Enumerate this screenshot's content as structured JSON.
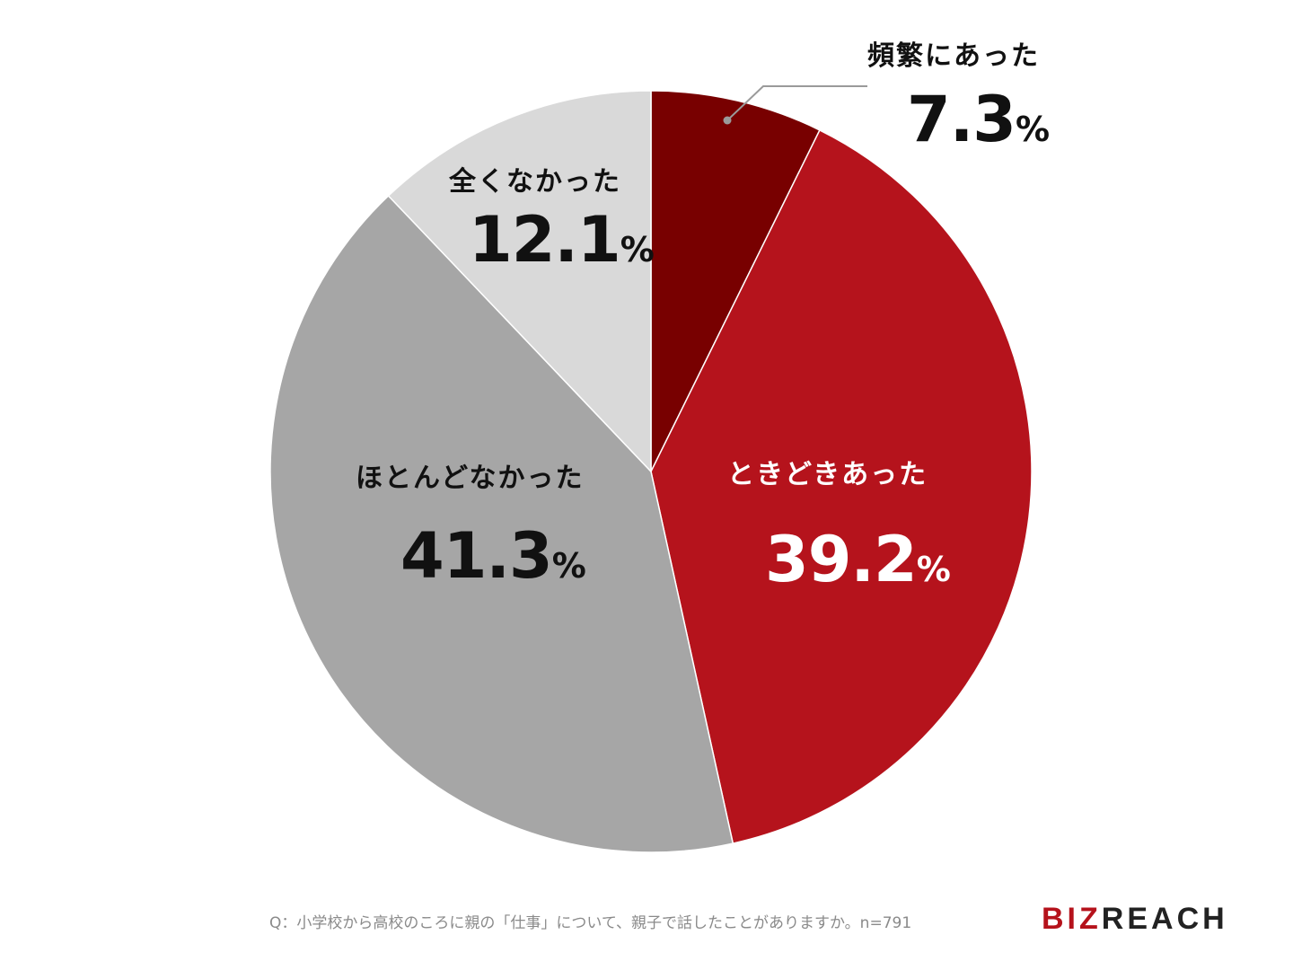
{
  "chart_data": {
    "type": "pie",
    "start_angle_deg": 0,
    "direction": "clockwise",
    "slices": [
      {
        "label": "頻繁にあった",
        "value": 7.3,
        "display": "7.3",
        "unit": "%",
        "color": "#780000"
      },
      {
        "label": "ときどきあった",
        "value": 39.2,
        "display": "39.2",
        "unit": "%",
        "color": "#b5131c"
      },
      {
        "label": "ほとんどなかった",
        "value": 41.3,
        "display": "41.3",
        "unit": "%",
        "color": "#a6a6a6"
      },
      {
        "label": "全くなかった",
        "value": 12.1,
        "display": "12.1",
        "unit": "%",
        "color": "#d9d9d9"
      }
    ]
  },
  "footer": {
    "question": "Q：小学校から高校のころに親の「仕事」について、親子で話したことがありますか。n=791",
    "logo_part1": "BIZ",
    "logo_part2": "REACH"
  }
}
